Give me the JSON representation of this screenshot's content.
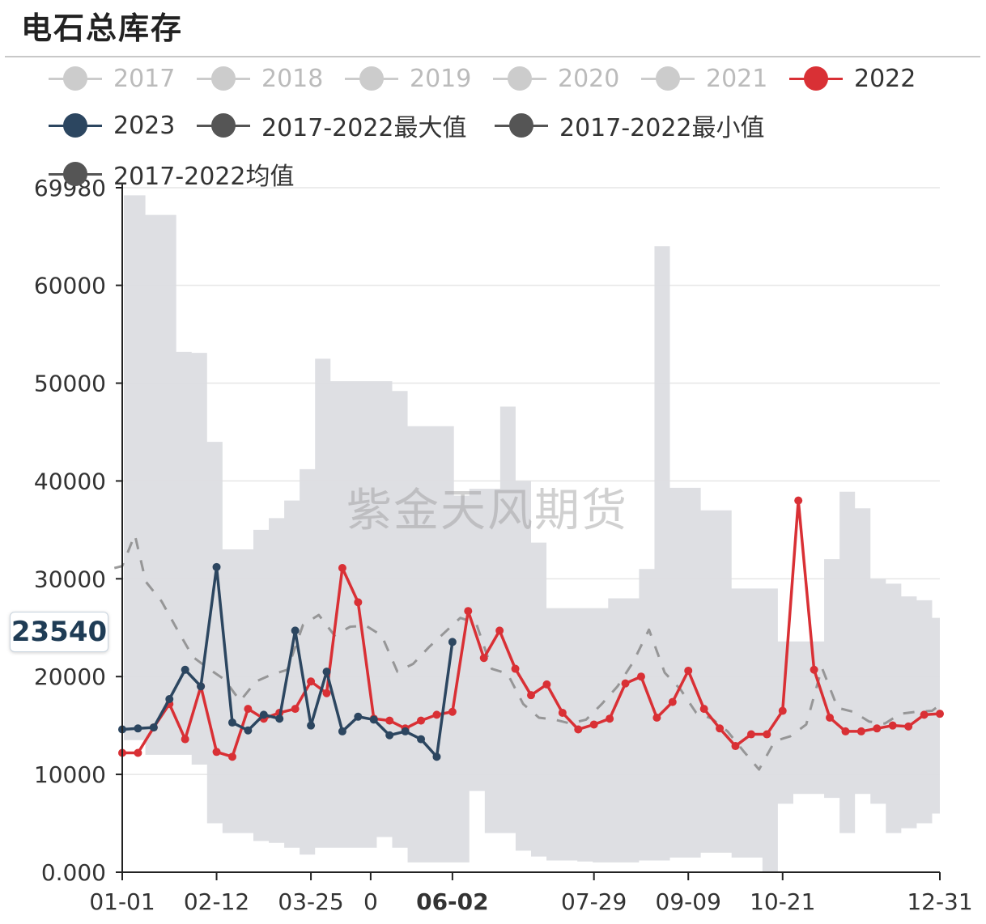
{
  "title": "电石总库存",
  "watermark": "紫金天风期货",
  "tooltip_value": "23540",
  "colors": {
    "band": "#dcdde2",
    "red": "#d93035",
    "navy": "#2c4660",
    "mean": "#8a8a8a",
    "grid": "#e6e6e6",
    "axis": "#222222",
    "inactive": "#cccccc",
    "dark_legend": "#555555"
  },
  "legend": [
    {
      "label": "2017",
      "color": "#cccccc",
      "text_color": "#bbbbbb",
      "active": false
    },
    {
      "label": "2018",
      "color": "#cccccc",
      "text_color": "#bbbbbb",
      "active": false
    },
    {
      "label": "2019",
      "color": "#cccccc",
      "text_color": "#bbbbbb",
      "active": false
    },
    {
      "label": "2020",
      "color": "#cccccc",
      "text_color": "#bbbbbb",
      "active": false
    },
    {
      "label": "2021",
      "color": "#cccccc",
      "text_color": "#bbbbbb",
      "active": false
    },
    {
      "label": "2022",
      "color": "#d93035",
      "text_color": "#333333",
      "active": true
    },
    {
      "label": "2023",
      "color": "#2c4660",
      "text_color": "#333333",
      "active": true
    },
    {
      "label": "2017-2022最大值",
      "color": "#555555",
      "text_color": "#333333",
      "active": true
    },
    {
      "label": "2017-2022最小值",
      "color": "#555555",
      "text_color": "#333333",
      "active": true
    },
    {
      "label": "2017-2022均值",
      "color": "#555555",
      "text_color": "#333333",
      "active": true
    }
  ],
  "chart_data": {
    "type": "line",
    "title": "电石总库存",
    "x_unit": "week of year (1-53)",
    "xlim": [
      1,
      53
    ],
    "ylim": [
      0,
      69980
    ],
    "y_ticks": [
      {
        "label": "0.000",
        "value": 0
      },
      {
        "label": "10000",
        "value": 10000
      },
      {
        "label": "20000",
        "value": 20000
      },
      {
        "label": "30000",
        "value": 30000
      },
      {
        "label": "40000",
        "value": 40000
      },
      {
        "label": "50000",
        "value": 50000
      },
      {
        "label": "60000",
        "value": 60000
      },
      {
        "label": "69980",
        "value": 69980
      }
    ],
    "x_ticks": [
      {
        "label": "01-01",
        "x": 1,
        "bold": false
      },
      {
        "label": "02-12",
        "x": 7,
        "bold": false
      },
      {
        "label": "03-25",
        "x": 13,
        "bold": false
      },
      {
        "label": "0",
        "x": 16.8,
        "bold": false
      },
      {
        "label": "06-02",
        "x": 22,
        "bold": true
      },
      {
        "label": "07-29",
        "x": 31,
        "bold": false
      },
      {
        "label": "09-09",
        "x": 37,
        "bold": false
      },
      {
        "label": "10-21",
        "x": 43,
        "bold": false
      },
      {
        "label": "12-31",
        "x": 53,
        "bold": false
      }
    ],
    "band_max": [
      69200,
      69200,
      67200,
      67200,
      53200,
      53100,
      44000,
      33000,
      33000,
      35000,
      36200,
      38000,
      41200,
      52500,
      50200,
      50200,
      50200,
      50200,
      49200,
      45600,
      45600,
      45600,
      38500,
      39200,
      39200,
      47600,
      40000,
      33700,
      27000,
      27000,
      27000,
      27000,
      28000,
      28000,
      31000,
      64000,
      39300,
      39300,
      37000,
      37000,
      29000,
      29000,
      29000,
      23600,
      23600,
      23600,
      32000,
      38900,
      37200,
      30000,
      29500,
      28200,
      27800,
      26000
    ],
    "band_min": [
      13500,
      13500,
      12000,
      12000,
      12000,
      11000,
      5000,
      4000,
      4000,
      3200,
      3000,
      2500,
      1800,
      2500,
      2500,
      2500,
      2500,
      3600,
      2500,
      1000,
      1000,
      1000,
      1000,
      8300,
      4000,
      4000,
      2200,
      1600,
      1200,
      1200,
      1100,
      1000,
      1000,
      1000,
      1200,
      1200,
      1500,
      1500,
      2000,
      2000,
      1500,
      1500,
      0,
      7000,
      8000,
      8000,
      7600,
      4000,
      8000,
      7000,
      4000,
      4500,
      5000,
      6000
    ],
    "series": [
      {
        "name": "2022",
        "color": "#d93035",
        "x": [
          1,
          2,
          3,
          4,
          5,
          6,
          7,
          8,
          9,
          10,
          11,
          12,
          13,
          14,
          15,
          16,
          17,
          18,
          19,
          20,
          21,
          22,
          23,
          24,
          25,
          26,
          27,
          28,
          29,
          30,
          31,
          32,
          33,
          34,
          35,
          36,
          37,
          38,
          39,
          40,
          41,
          42,
          43,
          44,
          45,
          46,
          47,
          48,
          49,
          50,
          51,
          52,
          53
        ],
        "values": [
          12200,
          12200,
          14800,
          17200,
          13600,
          19000,
          12300,
          11800,
          16700,
          15700,
          16300,
          16700,
          19500,
          18300,
          31100,
          27600,
          15700,
          15500,
          14700,
          15500,
          16100,
          16400,
          26700,
          21900,
          24700,
          20800,
          18100,
          19200,
          16300,
          14600,
          15100,
          15700,
          19300,
          20000,
          15800,
          17400,
          20600,
          16700,
          14700,
          12900,
          14100,
          14100,
          16500,
          38000,
          20700,
          15800,
          14400,
          14400,
          14700,
          15000,
          14900,
          16100,
          16200
        ]
      },
      {
        "name": "2023",
        "color": "#2c4660",
        "x": [
          1,
          2,
          3,
          4,
          5,
          6,
          7,
          8,
          9,
          10,
          11,
          12,
          13,
          14,
          15,
          16,
          17,
          18,
          19,
          20,
          21,
          22
        ],
        "values": [
          14600,
          14700,
          14800,
          17700,
          20700,
          19000,
          31200,
          15300,
          14500,
          16100,
          15700,
          24700,
          15000,
          20500,
          14400,
          15900,
          15600,
          14000,
          14400,
          13600,
          11800,
          23540
        ]
      },
      {
        "name": "2017-2022均值",
        "color": "#8a8a8a",
        "dashed": true,
        "x": [
          0.5,
          1,
          1.8,
          2.5,
          3.5,
          4.5,
          5.5,
          6.5,
          7.5,
          8.5,
          9.5,
          10.5,
          11.5,
          12.5,
          13.5,
          14.5,
          15.5,
          16.5,
          17.5,
          18.5,
          19.5,
          20.5,
          21.5,
          22.5,
          23.5,
          24.5,
          25.5,
          26.5,
          27.5,
          28.5,
          29.5,
          30.5,
          31.5,
          32.5,
          33.5,
          34.5,
          35.5,
          36.5,
          37.5,
          38.5,
          39.5,
          40.5,
          41.5,
          42.5,
          43.5,
          44.5,
          45.5,
          46.5,
          47.5,
          48.5,
          49.5,
          50.5,
          51.5,
          52.5,
          53
        ],
        "values": [
          31100,
          31300,
          34500,
          29700,
          27700,
          24800,
          22000,
          20800,
          19700,
          17500,
          19500,
          20200,
          20700,
          25300,
          26300,
          24200,
          25100,
          25200,
          24200,
          20500,
          21300,
          23000,
          24500,
          26000,
          25500,
          20800,
          20300,
          17200,
          15800,
          15600,
          15200,
          15600,
          17200,
          19000,
          21500,
          24800,
          20400,
          18700,
          16300,
          15700,
          14400,
          12400,
          10500,
          13400,
          13900,
          15100,
          20900,
          16800,
          16400,
          15400,
          15200,
          16200,
          16400,
          16500,
          17100
        ]
      }
    ]
  }
}
